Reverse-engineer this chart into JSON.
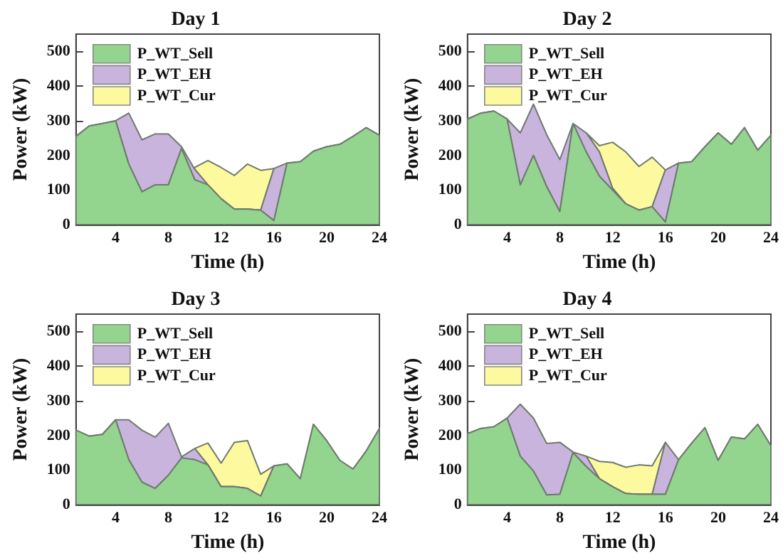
{
  "chart_data": [
    {
      "type": "area",
      "title": "Day 1",
      "xlabel": "Time (h)",
      "ylabel": "Power (kW)",
      "stacked": true,
      "legend": "top left",
      "grid": false,
      "x": [
        1,
        2,
        3,
        4,
        5,
        6,
        7,
        8,
        9,
        10,
        11,
        12,
        13,
        14,
        15,
        16,
        17,
        18,
        19,
        20,
        21,
        22,
        23,
        24
      ],
      "xlim": [
        1,
        24
      ],
      "xticks": [
        4,
        8,
        12,
        16,
        20,
        24
      ],
      "ylim": [
        0,
        550
      ],
      "yticks": [
        0,
        100,
        200,
        300,
        400,
        500
      ],
      "series": [
        {
          "name": "P_WT_Sell",
          "color": "#93d48e",
          "values": [
            255,
            285,
            292,
            300,
            175,
            95,
            115,
            115,
            220,
            130,
            115,
            75,
            45,
            45,
            42,
            12,
            178,
            182,
            212,
            225,
            232,
            255,
            280,
            258
          ]
        },
        {
          "name": "P_WT_EH",
          "color": "#c8b4dc",
          "values": [
            0,
            0,
            0,
            0,
            147,
            150,
            147,
            147,
            5,
            30,
            0,
            0,
            0,
            0,
            0,
            150,
            0,
            0,
            0,
            0,
            0,
            0,
            0,
            0
          ]
        },
        {
          "name": "P_WT_Cur",
          "color": "#fdf99e",
          "values": [
            null,
            null,
            null,
            null,
            null,
            null,
            null,
            null,
            null,
            5,
            70,
            90,
            97,
            130,
            115,
            0,
            null,
            null,
            null,
            null,
            null,
            null,
            null,
            null
          ]
        }
      ]
    },
    {
      "type": "area",
      "title": "Day 2",
      "xlabel": "Time (h)",
      "ylabel": "Power (kW)",
      "stacked": true,
      "legend": "top left",
      "grid": false,
      "x": [
        1,
        2,
        3,
        4,
        5,
        6,
        7,
        8,
        9,
        10,
        11,
        12,
        13,
        14,
        15,
        16,
        17,
        18,
        19,
        20,
        21,
        22,
        23,
        24
      ],
      "xlim": [
        1,
        24
      ],
      "xticks": [
        4,
        8,
        12,
        16,
        20,
        24
      ],
      "ylim": [
        0,
        550
      ],
      "yticks": [
        0,
        100,
        200,
        300,
        400,
        500
      ],
      "series": [
        {
          "name": "P_WT_Sell",
          "color": "#93d48e",
          "values": [
            305,
            322,
            328,
            305,
            115,
            200,
            110,
            38,
            292,
            210,
            140,
            100,
            60,
            42,
            52,
            8,
            178,
            182,
            225,
            265,
            232,
            280,
            215,
            258
          ]
        },
        {
          "name": "P_WT_EH",
          "color": "#c8b4dc",
          "values": [
            0,
            0,
            0,
            0,
            150,
            148,
            150,
            150,
            0,
            55,
            70,
            5,
            0,
            0,
            0,
            150,
            0,
            0,
            0,
            0,
            0,
            0,
            0,
            0
          ]
        },
        {
          "name": "P_WT_Cur",
          "color": "#fdf99e",
          "values": [
            null,
            null,
            null,
            null,
            null,
            null,
            null,
            null,
            null,
            0,
            18,
            133,
            150,
            126,
            143,
            0,
            null,
            null,
            null,
            null,
            null,
            null,
            null,
            null
          ]
        }
      ]
    },
    {
      "type": "area",
      "title": "Day 3",
      "xlabel": "Time (h)",
      "ylabel": "Power (kW)",
      "stacked": true,
      "legend": "top left",
      "grid": false,
      "x": [
        1,
        2,
        3,
        4,
        5,
        6,
        7,
        8,
        9,
        10,
        11,
        12,
        13,
        14,
        15,
        16,
        17,
        18,
        19,
        20,
        21,
        22,
        23,
        24
      ],
      "xlim": [
        1,
        24
      ],
      "xticks": [
        4,
        8,
        12,
        16,
        20,
        24
      ],
      "ylim": [
        0,
        550
      ],
      "yticks": [
        0,
        100,
        200,
        300,
        400,
        500
      ],
      "series": [
        {
          "name": "P_WT_Sell",
          "color": "#93d48e",
          "values": [
            215,
            198,
            203,
            245,
            130,
            65,
            47,
            85,
            135,
            130,
            115,
            52,
            52,
            47,
            25,
            112,
            118,
            75,
            232,
            185,
            128,
            103,
            155,
            220
          ]
        },
        {
          "name": "P_WT_EH",
          "color": "#c8b4dc",
          "values": [
            0,
            0,
            0,
            0,
            115,
            150,
            148,
            150,
            3,
            32,
            0,
            0,
            0,
            0,
            0,
            0,
            0,
            0,
            0,
            0,
            0,
            0,
            0,
            0
          ]
        },
        {
          "name": "P_WT_Cur",
          "color": "#fdf99e",
          "values": [
            null,
            null,
            null,
            null,
            null,
            null,
            null,
            null,
            null,
            0,
            63,
            68,
            128,
            138,
            63,
            0,
            null,
            null,
            null,
            null,
            null,
            null,
            null,
            null
          ]
        }
      ]
    },
    {
      "type": "area",
      "title": "Day 4",
      "xlabel": "Time (h)",
      "ylabel": "Power (kW)",
      "stacked": true,
      "legend": "top left",
      "grid": false,
      "x": [
        1,
        2,
        3,
        4,
        5,
        6,
        7,
        8,
        9,
        10,
        11,
        12,
        13,
        14,
        15,
        16,
        17,
        18,
        19,
        20,
        21,
        22,
        23,
        24
      ],
      "xlim": [
        1,
        24
      ],
      "xticks": [
        4,
        8,
        12,
        16,
        20,
        24
      ],
      "ylim": [
        0,
        550
      ],
      "yticks": [
        0,
        100,
        200,
        300,
        400,
        500
      ],
      "series": [
        {
          "name": "P_WT_Sell",
          "color": "#93d48e",
          "values": [
            205,
            220,
            225,
            250,
            140,
            97,
            28,
            30,
            150,
            110,
            75,
            52,
            32,
            30,
            30,
            30,
            130,
            178,
            222,
            128,
            195,
            190,
            232,
            170
          ]
        },
        {
          "name": "P_WT_EH",
          "color": "#c8b4dc",
          "values": [
            0,
            0,
            0,
            0,
            150,
            153,
            149,
            150,
            2,
            30,
            0,
            0,
            0,
            0,
            0,
            150,
            0,
            0,
            0,
            0,
            0,
            0,
            0,
            0
          ]
        },
        {
          "name": "P_WT_Cur",
          "color": "#fdf99e",
          "values": [
            null,
            null,
            null,
            null,
            null,
            null,
            null,
            null,
            null,
            0,
            50,
            70,
            76,
            85,
            82,
            0,
            null,
            null,
            null,
            null,
            null,
            null,
            null,
            null
          ]
        }
      ]
    }
  ]
}
